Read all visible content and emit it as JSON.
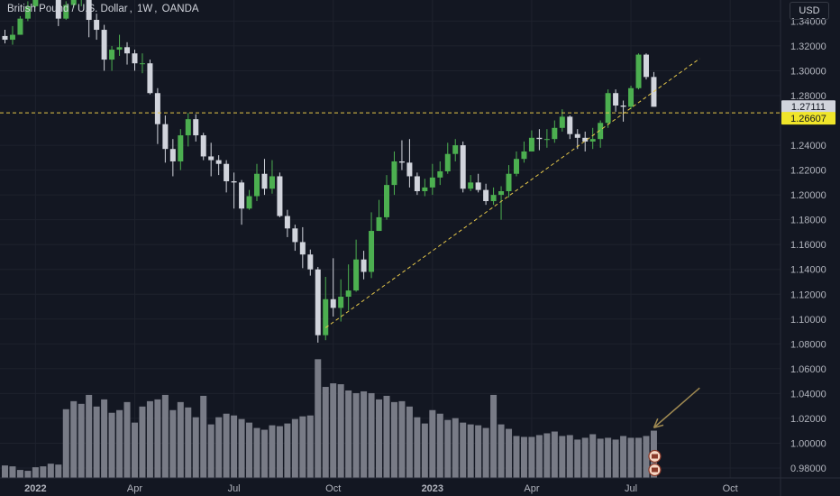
{
  "header": {
    "symbol": "British Pound / U.S. Dollar",
    "interval": "1W",
    "exchange": "OANDA",
    "currency": "USD"
  },
  "colors": {
    "background": "#131722",
    "up": "#4caf50",
    "down": "#d1d4dc",
    "volume": "#787b86",
    "dashed": "#e6c84a",
    "badge_last": "#d1d4dc",
    "badge_line": "#f0e52a",
    "arrow": "#a08a52"
  },
  "chart_data": {
    "type": "candlestick",
    "ylim": [
      0.972,
      1.357
    ],
    "price_ticks": [
      1.34,
      1.32,
      1.3,
      1.28,
      1.24,
      1.22,
      1.2,
      1.18,
      1.16,
      1.14,
      1.12,
      1.1,
      1.08,
      1.06,
      1.04,
      1.02,
      1.0,
      0.98
    ],
    "price_tick_labels": [
      "1.34000",
      "1.32000",
      "1.30000",
      "1.28000",
      "1.24000",
      "1.22000",
      "1.20000",
      "1.18000",
      "1.16000",
      "1.14000",
      "1.12000",
      "1.10000",
      "1.08000",
      "1.06000",
      "1.04000",
      "1.02000",
      "1.00000",
      "0.98000"
    ],
    "last_price": 1.27111,
    "last_price_label": "1.27111",
    "horizontal_level": 1.26607,
    "horizontal_level_label": "1.26607",
    "trendline": {
      "from": [
        "2022-09-26",
        1.093
      ],
      "to": [
        "2023-09-04",
        1.3098
      ]
    },
    "x_ticks": [
      "2022",
      "Apr",
      "Jul",
      "Oct",
      "2023",
      "Apr",
      "Jul",
      "Oct"
    ],
    "x_tick_dates": [
      "2022-01-03",
      "2022-04-04",
      "2022-07-04",
      "2022-10-03",
      "2023-01-02",
      "2023-04-03",
      "2023-07-03",
      "2023-10-02"
    ],
    "weeks": [
      "2021-12-06",
      "2021-12-13",
      "2021-12-20",
      "2021-12-27",
      "2022-01-03",
      "2022-01-10",
      "2022-01-17",
      "2022-01-24",
      "2022-01-31",
      "2022-02-07",
      "2022-02-14",
      "2022-02-21",
      "2022-02-28",
      "2022-03-07",
      "2022-03-14",
      "2022-03-21",
      "2022-03-28",
      "2022-04-04",
      "2022-04-11",
      "2022-04-18",
      "2022-04-25",
      "2022-05-02",
      "2022-05-09",
      "2022-05-16",
      "2022-05-23",
      "2022-05-30",
      "2022-06-06",
      "2022-06-13",
      "2022-06-20",
      "2022-06-27",
      "2022-07-04",
      "2022-07-11",
      "2022-07-18",
      "2022-07-25",
      "2022-08-01",
      "2022-08-08",
      "2022-08-15",
      "2022-08-22",
      "2022-08-29",
      "2022-09-05",
      "2022-09-12",
      "2022-09-19",
      "2022-09-26",
      "2022-10-03",
      "2022-10-10",
      "2022-10-17",
      "2022-10-24",
      "2022-10-31",
      "2022-11-07",
      "2022-11-14",
      "2022-11-21",
      "2022-11-28",
      "2022-12-05",
      "2022-12-12",
      "2022-12-19",
      "2022-12-26",
      "2023-01-02",
      "2023-01-09",
      "2023-01-16",
      "2023-01-23",
      "2023-01-30",
      "2023-02-06",
      "2023-02-13",
      "2023-02-20",
      "2023-02-27",
      "2023-03-06",
      "2023-03-13",
      "2023-03-20",
      "2023-03-27",
      "2023-04-03",
      "2023-04-10",
      "2023-04-17",
      "2023-04-24",
      "2023-05-01",
      "2023-05-08",
      "2023-05-15",
      "2023-05-22",
      "2023-05-29",
      "2023-06-05",
      "2023-06-12",
      "2023-06-19",
      "2023-06-26",
      "2023-07-03",
      "2023-07-10",
      "2023-07-17",
      "2023-07-24"
    ],
    "open": [
      1.328,
      1.325,
      1.329,
      1.342,
      1.352,
      1.359,
      1.369,
      1.361,
      1.342,
      1.353,
      1.357,
      1.358,
      1.341,
      1.333,
      1.309,
      1.317,
      1.319,
      1.314,
      1.306,
      1.306,
      1.282,
      1.257,
      1.237,
      1.227,
      1.248,
      1.261,
      1.248,
      1.231,
      1.228,
      1.225,
      1.211,
      1.21,
      1.189,
      1.199,
      1.217,
      1.205,
      1.215,
      1.183,
      1.173,
      1.162,
      1.152,
      1.14,
      1.087,
      1.116,
      1.109,
      1.118,
      1.123,
      1.148,
      1.138,
      1.171,
      1.182,
      1.208,
      1.227,
      1.226,
      1.215,
      1.203,
      1.206,
      1.214,
      1.219,
      1.233,
      1.24,
      1.205,
      1.21,
      1.204,
      1.195,
      1.2,
      1.203,
      1.217,
      1.229,
      1.235,
      1.246,
      1.245,
      1.245,
      1.254,
      1.263,
      1.249,
      1.246,
      1.243,
      1.245,
      1.258,
      1.282,
      1.272,
      1.271,
      1.286,
      1.313,
      1.295
    ],
    "close": [
      1.325,
      1.329,
      1.342,
      1.352,
      1.359,
      1.369,
      1.361,
      1.342,
      1.353,
      1.357,
      1.358,
      1.341,
      1.333,
      1.309,
      1.317,
      1.319,
      1.314,
      1.306,
      1.306,
      1.282,
      1.257,
      1.237,
      1.227,
      1.248,
      1.261,
      1.248,
      1.231,
      1.228,
      1.225,
      1.211,
      1.21,
      1.189,
      1.199,
      1.217,
      1.205,
      1.215,
      1.183,
      1.173,
      1.162,
      1.152,
      1.14,
      1.087,
      1.116,
      1.109,
      1.118,
      1.123,
      1.148,
      1.138,
      1.171,
      1.182,
      1.208,
      1.227,
      1.226,
      1.215,
      1.203,
      1.206,
      1.214,
      1.219,
      1.233,
      1.24,
      1.205,
      1.21,
      1.204,
      1.195,
      1.2,
      1.203,
      1.217,
      1.229,
      1.235,
      1.246,
      1.245,
      1.245,
      1.254,
      1.263,
      1.249,
      1.246,
      1.243,
      1.245,
      1.258,
      1.282,
      1.272,
      1.271,
      1.286,
      1.313,
      1.295,
      1.271
    ],
    "high": [
      1.333,
      1.336,
      1.344,
      1.356,
      1.364,
      1.375,
      1.372,
      1.365,
      1.356,
      1.363,
      1.365,
      1.36,
      1.346,
      1.337,
      1.32,
      1.329,
      1.323,
      1.317,
      1.314,
      1.309,
      1.286,
      1.264,
      1.245,
      1.253,
      1.266,
      1.265,
      1.25,
      1.242,
      1.232,
      1.228,
      1.218,
      1.212,
      1.204,
      1.225,
      1.229,
      1.228,
      1.218,
      1.188,
      1.176,
      1.174,
      1.156,
      1.142,
      1.134,
      1.149,
      1.132,
      1.144,
      1.164,
      1.155,
      1.186,
      1.196,
      1.216,
      1.235,
      1.244,
      1.245,
      1.218,
      1.213,
      1.225,
      1.227,
      1.242,
      1.245,
      1.243,
      1.216,
      1.217,
      1.209,
      1.206,
      1.207,
      1.224,
      1.235,
      1.243,
      1.252,
      1.253,
      1.253,
      1.26,
      1.269,
      1.264,
      1.253,
      1.251,
      1.254,
      1.26,
      1.285,
      1.285,
      1.276,
      1.288,
      1.314,
      1.314,
      1.299
    ],
    "low": [
      1.322,
      1.321,
      1.329,
      1.34,
      1.351,
      1.358,
      1.358,
      1.336,
      1.341,
      1.351,
      1.352,
      1.327,
      1.325,
      1.3,
      1.3,
      1.312,
      1.305,
      1.3,
      1.298,
      1.281,
      1.241,
      1.226,
      1.215,
      1.22,
      1.239,
      1.243,
      1.228,
      1.215,
      1.216,
      1.202,
      1.189,
      1.176,
      1.188,
      1.195,
      1.2,
      1.201,
      1.182,
      1.166,
      1.155,
      1.141,
      1.135,
      1.081,
      1.083,
      1.102,
      1.098,
      1.107,
      1.122,
      1.132,
      1.133,
      1.171,
      1.18,
      1.2,
      1.22,
      1.206,
      1.2,
      1.199,
      1.2,
      1.208,
      1.217,
      1.227,
      1.202,
      1.203,
      1.202,
      1.192,
      1.192,
      1.18,
      1.198,
      1.215,
      1.226,
      1.235,
      1.236,
      1.238,
      1.242,
      1.251,
      1.245,
      1.237,
      1.235,
      1.237,
      1.238,
      1.254,
      1.267,
      1.259,
      1.269,
      1.285,
      1.293,
      1.271
    ],
    "volume": [
      0.14,
      0.13,
      0.09,
      0.08,
      0.12,
      0.13,
      0.16,
      0.15,
      0.77,
      0.86,
      0.83,
      0.93,
      0.8,
      0.88,
      0.73,
      0.76,
      0.85,
      0.62,
      0.8,
      0.86,
      0.88,
      0.93,
      0.76,
      0.85,
      0.79,
      0.68,
      0.92,
      0.6,
      0.68,
      0.72,
      0.7,
      0.66,
      0.62,
      0.56,
      0.54,
      0.59,
      0.58,
      0.61,
      0.66,
      0.69,
      0.7,
      1.33,
      1.02,
      1.06,
      1.05,
      0.98,
      0.95,
      0.97,
      0.95,
      0.88,
      0.92,
      0.85,
      0.86,
      0.8,
      0.68,
      0.61,
      0.76,
      0.72,
      0.65,
      0.67,
      0.62,
      0.6,
      0.59,
      0.56,
      0.93,
      0.6,
      0.55,
      0.47,
      0.46,
      0.46,
      0.48,
      0.5,
      0.52,
      0.47,
      0.48,
      0.43,
      0.45,
      0.49,
      0.44,
      0.45,
      0.43,
      0.47,
      0.45,
      0.45,
      0.47,
      0.53
    ]
  },
  "annotations": {
    "arrow": {
      "from": [
        "2023-09-04",
        1.0445
      ],
      "to": [
        "2023-07-24",
        1.0125
      ]
    }
  }
}
